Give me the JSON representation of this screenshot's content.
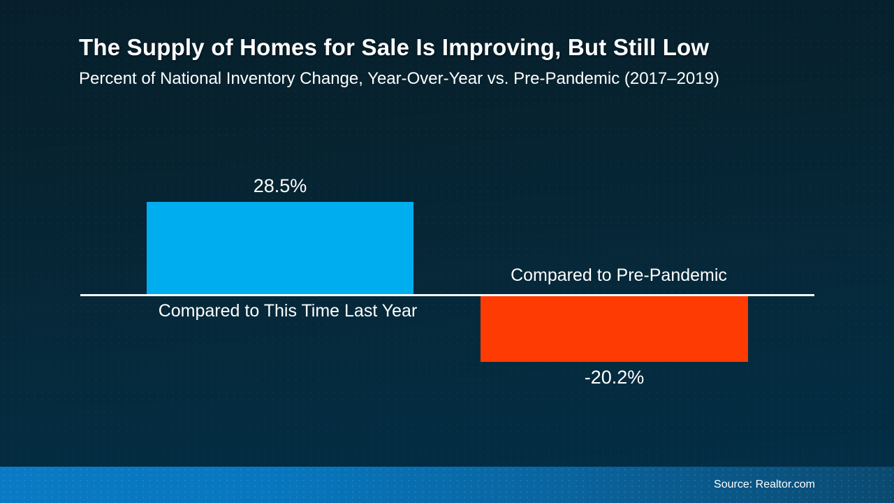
{
  "title": "The Supply of Homes for Sale Is Improving, But Still Low",
  "subtitle": "Percent of National Inventory Change, Year-Over-Year vs. Pre-Pandemic (2017–2019)",
  "source": "Source: Realtor.com",
  "colors": {
    "background_top": "#07222f",
    "background_bottom": "#043049",
    "positive_bar": "#00AEEF",
    "negative_bar": "#FE3B02",
    "axis": "#FFFFFF",
    "footer_left": "#0877BF",
    "footer_right": "#0B4A70",
    "text": "#FFFFFF"
  },
  "chart_data": {
    "type": "bar",
    "title": "The Supply of Homes for Sale Is Improving, But Still Low",
    "subtitle": "Percent of National Inventory Change, Year-Over-Year vs. Pre-Pandemic (2017–2019)",
    "categories": [
      "Compared to This Time Last Year",
      "Compared to Pre-Pandemic"
    ],
    "values": [
      28.5,
      -20.2
    ],
    "value_labels": [
      "28.5%",
      "-20.2%"
    ],
    "colors": [
      "#00AEEF",
      "#FE3B02"
    ],
    "xlabel": "",
    "ylabel": "Percent of National Inventory Change",
    "baseline": 0,
    "ylim": [
      -25,
      32
    ],
    "grid": false,
    "legend": false,
    "axis_line_color": "#FFFFFF",
    "orientation": "vertical-diverging"
  }
}
